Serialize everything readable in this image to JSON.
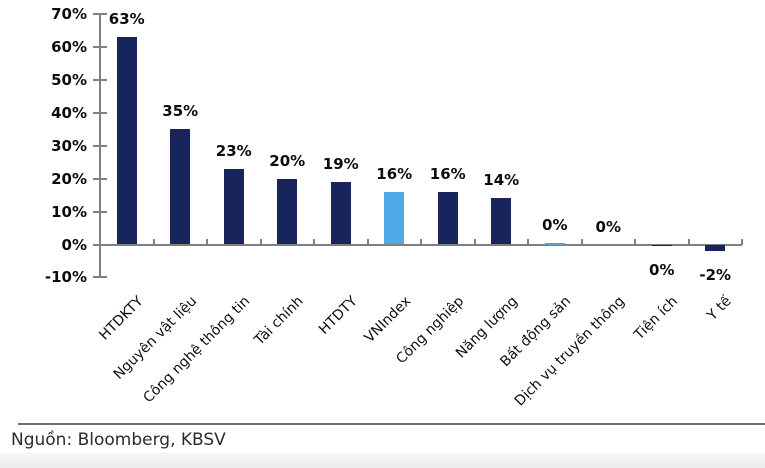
{
  "chart_data": {
    "type": "bar",
    "title": "",
    "xlabel": "",
    "ylabel": "",
    "categories": [
      "HTDKTY",
      "Nguyên vật liệu",
      "Công nghệ thông tin",
      "Tài chính",
      "HTDTY",
      "VNIndex",
      "Công nghiệp",
      "Năng lượng",
      "Bất động sản",
      "Dịch vụ truyền thông",
      "Tiện ích",
      "Y tế"
    ],
    "values": [
      63,
      35,
      23,
      20,
      19,
      16,
      16,
      14,
      0.4,
      0,
      -0.4,
      -2
    ],
    "data_labels": [
      "63%",
      "35%",
      "23%",
      "20%",
      "19%",
      "16%",
      "16%",
      "14%",
      "0%",
      "0%",
      "0%",
      "-2%"
    ],
    "bar_colors": [
      "#17255C",
      "#17255C",
      "#17255C",
      "#17255C",
      "#17255C",
      "#52A9E8",
      "#17255C",
      "#17255C",
      "#5B9FC6",
      "#17255C",
      "#17255C",
      "#17255C"
    ],
    "y_tick_labels": [
      "70%",
      "60%",
      "50%",
      "40%",
      "30%",
      "20%",
      "10%",
      "0%",
      "-10%"
    ],
    "y_tick_values": [
      70,
      60,
      50,
      40,
      30,
      20,
      10,
      0,
      -10
    ],
    "ylim": [
      -10,
      70
    ],
    "grid": false,
    "legend": "none",
    "highlight_category": "VNIndex",
    "colors": {
      "bar_default": "#17255C",
      "bar_highlight": "#52A9E8",
      "axis": "#808080",
      "label_text": "#0d0d0d"
    }
  },
  "footer": {
    "source_label": "Nguồn: Bloomberg, KBSV"
  }
}
